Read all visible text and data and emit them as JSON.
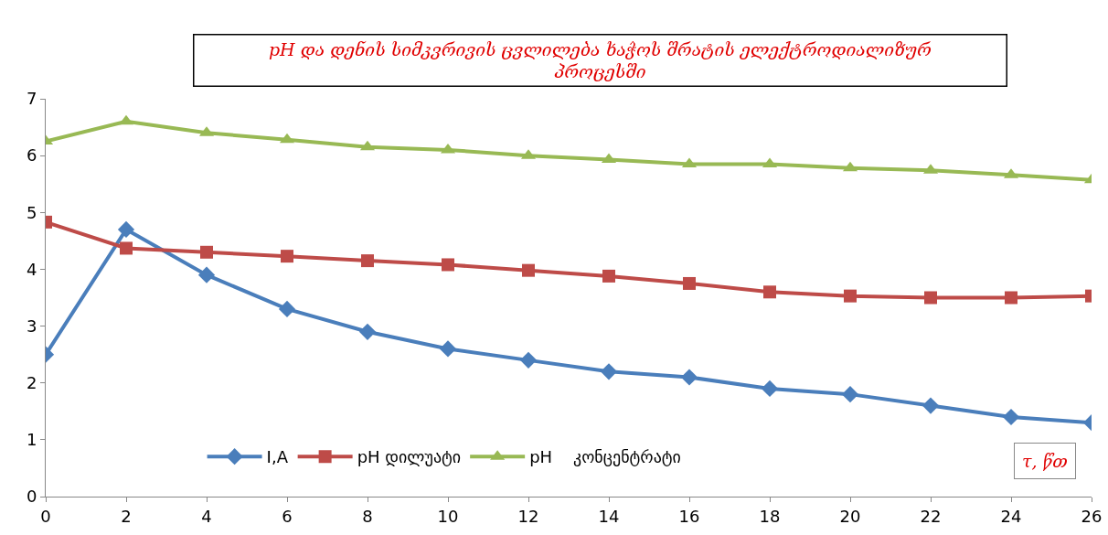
{
  "chart_data": {
    "type": "line",
    "title": "pH და დენის სიმკვრივის ცვლილება ხაჭოს შრატის ელექტროდიალიზურ პროცესში",
    "xlabel": "τ, წთ",
    "x": [
      0,
      2,
      4,
      6,
      8,
      10,
      12,
      14,
      16,
      18,
      20,
      22,
      24,
      26
    ],
    "series": [
      {
        "name": "I,A",
        "color": "#4a7ebb",
        "marker": "diamond",
        "values": [
          2.5,
          4.7,
          3.9,
          3.3,
          2.9,
          2.6,
          2.4,
          2.2,
          2.1,
          1.9,
          1.8,
          1.6,
          1.4,
          1.3
        ]
      },
      {
        "name": "pH დილუატი",
        "color": "#be4b48",
        "marker": "square",
        "values": [
          4.83,
          4.37,
          4.3,
          4.23,
          4.15,
          4.08,
          3.98,
          3.88,
          3.75,
          3.6,
          3.53,
          3.5,
          3.5,
          3.53
        ]
      },
      {
        "name": "pH    კონცენტრატი",
        "color": "#98b954",
        "marker": "triangle",
        "values": [
          6.25,
          6.6,
          6.4,
          6.28,
          6.15,
          6.1,
          6.0,
          5.93,
          5.85,
          5.85,
          5.78,
          5.74,
          5.66,
          5.57
        ]
      }
    ],
    "xlim": [
      0,
      26
    ],
    "xticks": [
      0,
      2,
      4,
      6,
      8,
      10,
      12,
      14,
      16,
      18,
      20,
      22,
      24,
      26
    ],
    "ylim": [
      0,
      7
    ],
    "yticks": [
      0,
      1,
      2,
      3,
      4,
      5,
      6,
      7
    ],
    "grid": false,
    "legend": "bottom",
    "line_style": "solid"
  }
}
